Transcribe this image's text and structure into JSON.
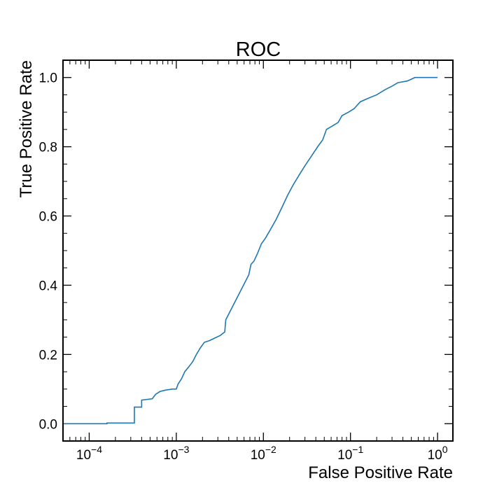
{
  "chart_data": {
    "type": "line",
    "title": "ROC",
    "xlabel": "False Positive Rate",
    "ylabel": "True Positive Rate",
    "x_scale": "log",
    "xlim": [
      5e-05,
      1.5
    ],
    "ylim": [
      -0.05,
      1.05
    ],
    "grid": false,
    "line_color": "#1f77b4",
    "x_ticks": [
      {
        "value": 0.0001,
        "base": "10",
        "exp": "−4"
      },
      {
        "value": 0.001,
        "base": "10",
        "exp": "−3"
      },
      {
        "value": 0.01,
        "base": "10",
        "exp": "−2"
      },
      {
        "value": 0.1,
        "base": "10",
        "exp": "−1"
      },
      {
        "value": 1,
        "base": "10",
        "exp": "0"
      }
    ],
    "y_ticks": [
      {
        "value": 0.0,
        "label": "0.0"
      },
      {
        "value": 0.2,
        "label": "0.2"
      },
      {
        "value": 0.4,
        "label": "0.4"
      },
      {
        "value": 0.6,
        "label": "0.6"
      },
      {
        "value": 0.8,
        "label": "0.8"
      },
      {
        "value": 1.0,
        "label": "1.0"
      }
    ],
    "series": [
      {
        "points": [
          [
            5e-05,
            0.0
          ],
          [
            0.00016,
            0.0
          ],
          [
            0.00016,
            0.002
          ],
          [
            0.00033,
            0.002
          ],
          [
            0.00033,
            0.048
          ],
          [
            0.0004,
            0.048
          ],
          [
            0.0004,
            0.068
          ],
          [
            0.00053,
            0.072
          ],
          [
            0.00058,
            0.085
          ],
          [
            0.00065,
            0.093
          ],
          [
            0.00075,
            0.097
          ],
          [
            0.0009,
            0.1
          ],
          [
            0.001,
            0.1
          ],
          [
            0.00105,
            0.115
          ],
          [
            0.00115,
            0.13
          ],
          [
            0.00125,
            0.15
          ],
          [
            0.0014,
            0.165
          ],
          [
            0.00155,
            0.18
          ],
          [
            0.0017,
            0.2
          ],
          [
            0.0019,
            0.22
          ],
          [
            0.0021,
            0.235
          ],
          [
            0.0024,
            0.24
          ],
          [
            0.0028,
            0.248
          ],
          [
            0.0032,
            0.255
          ],
          [
            0.0036,
            0.265
          ],
          [
            0.0037,
            0.3
          ],
          [
            0.0068,
            0.43
          ],
          [
            0.0072,
            0.46
          ],
          [
            0.0078,
            0.47
          ],
          [
            0.0085,
            0.49
          ],
          [
            0.0095,
            0.52
          ],
          [
            0.0105,
            0.535
          ],
          [
            0.012,
            0.56
          ],
          [
            0.014,
            0.59
          ],
          [
            0.016,
            0.62
          ],
          [
            0.019,
            0.66
          ],
          [
            0.022,
            0.69
          ],
          [
            0.026,
            0.72
          ],
          [
            0.03,
            0.745
          ],
          [
            0.035,
            0.77
          ],
          [
            0.042,
            0.8
          ],
          [
            0.048,
            0.82
          ],
          [
            0.053,
            0.85
          ],
          [
            0.062,
            0.86
          ],
          [
            0.072,
            0.87
          ],
          [
            0.08,
            0.89
          ],
          [
            0.095,
            0.9
          ],
          [
            0.11,
            0.91
          ],
          [
            0.13,
            0.93
          ],
          [
            0.16,
            0.94
          ],
          [
            0.2,
            0.95
          ],
          [
            0.25,
            0.965
          ],
          [
            0.3,
            0.975
          ],
          [
            0.35,
            0.985
          ],
          [
            0.45,
            0.99
          ],
          [
            0.55,
            1.0
          ],
          [
            1.0,
            1.0
          ]
        ]
      }
    ]
  }
}
